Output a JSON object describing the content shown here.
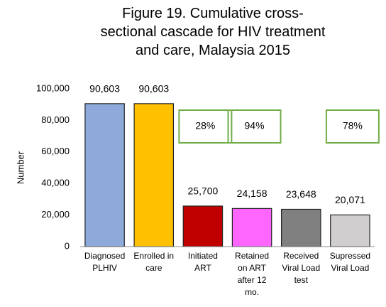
{
  "chart_data": {
    "type": "bar",
    "title": "Figure 19. Cumulative cross-\nsectional cascade for HIV treatment\nand care, Malaysia 2015",
    "y_label": "Number",
    "categories": [
      "Diagnosed\nPLHIV",
      "Enrolled in\ncare",
      "Initiated\nART",
      "Retained\non ART\nafter 12\nmo.",
      "Received\nViral Load\ntest",
      "Supressed\nViral Load"
    ],
    "values": [
      90603,
      90603,
      25700,
      24158,
      23648,
      20071
    ],
    "value_labels": [
      "90,603",
      "90,603",
      "25,700",
      "24,158",
      "23,648",
      "20,071"
    ],
    "colors": [
      "#8eaadb",
      "#ffc000",
      "#c00000",
      "#ff66ff",
      "#808080",
      "#d0cece"
    ],
    "ylim": [
      0,
      100000
    ],
    "yticks": [
      0,
      {
        "value": 20000,
        "label": "20,000"
      },
      {
        "value": 40000,
        "label": "40,000"
      },
      {
        "value": 60000,
        "label": "60,000"
      },
      {
        "value": 80000,
        "label": "80,000"
      },
      {
        "value": 100000,
        "label": "100,000"
      }
    ],
    "annotations": [
      "28%",
      "94%",
      "78%"
    ]
  }
}
